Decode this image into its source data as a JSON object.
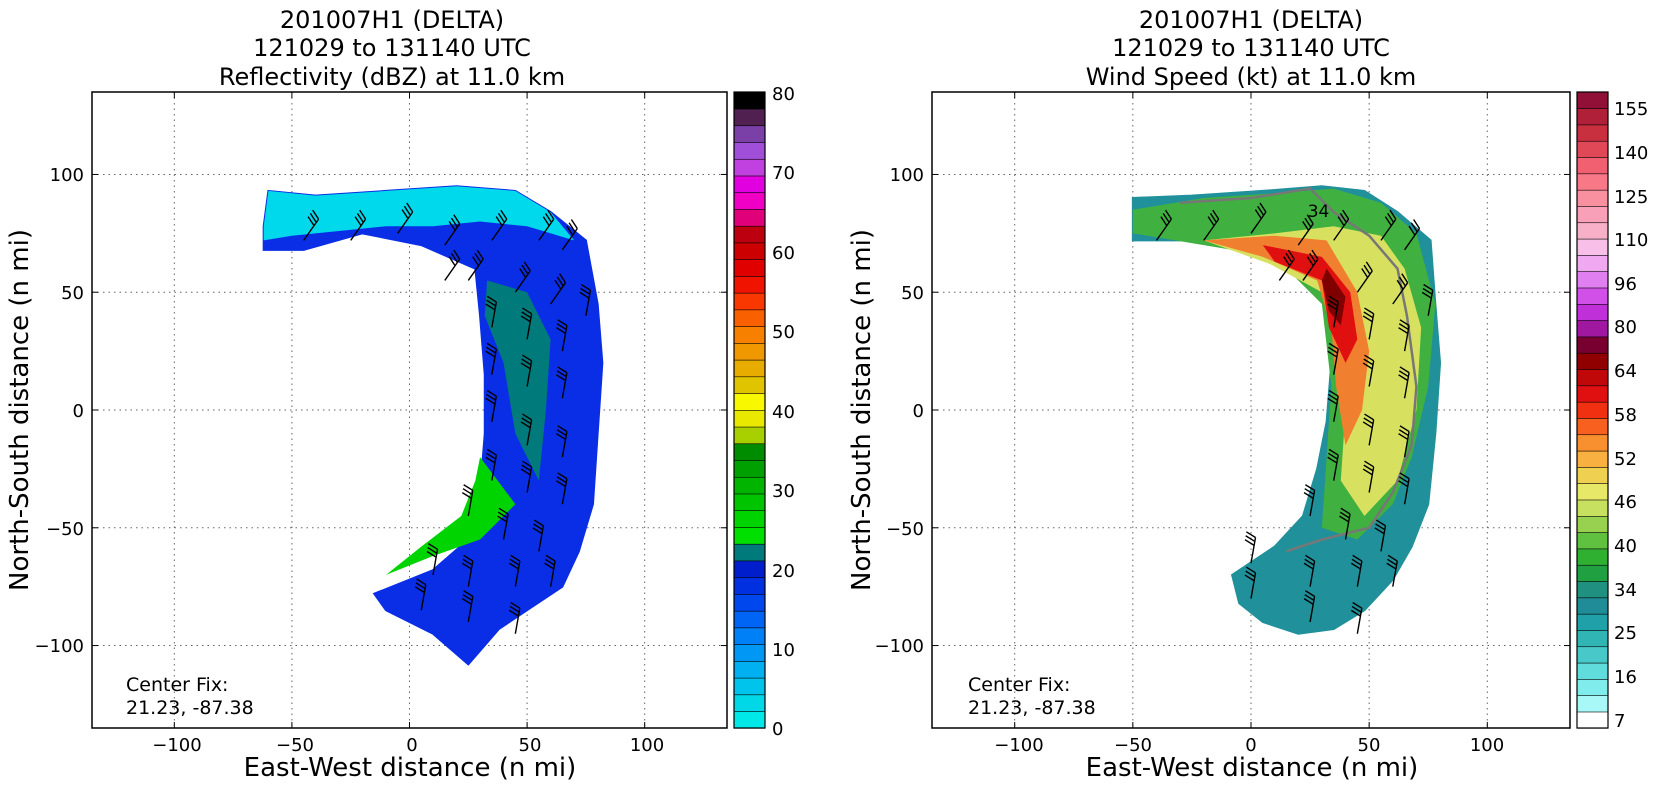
{
  "panels": [
    {
      "title_line1": "201007H1 (DELTA)",
      "title_line2": "121029 to 131140 UTC",
      "title_line3": "Reflectivity (dBZ) at 11.0 km",
      "xlabel": "East-West distance (n mi)",
      "ylabel": "North-South distance (n mi)",
      "center_fix_label": "Center Fix:",
      "center_fix_value": "21.23, -87.38",
      "x_ticks": [
        "−100",
        "−50",
        "0",
        "50",
        "100"
      ],
      "y_ticks": [
        "100",
        "50",
        "0",
        "−50",
        "−100"
      ],
      "colorbar": {
        "ticks": [
          "80",
          "70",
          "60",
          "50",
          "40",
          "30",
          "20",
          "10",
          "0"
        ],
        "colors": [
          "#00e8e8",
          "#00d8e8",
          "#00c4ec",
          "#00b0f0",
          "#0098f4",
          "#0080f6",
          "#0064f4",
          "#0048ee",
          "#0030e0",
          "#001ecc",
          "#007a7a",
          "#00e000",
          "#00d400",
          "#00c400",
          "#00b400",
          "#00a000",
          "#008c00",
          "#a8d000",
          "#e8e800",
          "#f8f800",
          "#e0c400",
          "#e8ac00",
          "#f09800",
          "#f88000",
          "#f86000",
          "#f83800",
          "#f01400",
          "#e00000",
          "#cc0000",
          "#bc0010",
          "#e0007a",
          "#f000c4",
          "#e000e0",
          "#c040e0",
          "#a050d8",
          "#7a40a8",
          "#502050",
          "#000000"
        ]
      }
    },
    {
      "title_line1": "201007H1 (DELTA)",
      "title_line2": "121029 to 131140 UTC",
      "title_line3": "Wind Speed (kt) at 11.0 km",
      "xlabel": "East-West distance (n mi)",
      "ylabel": "North-South distance (n mi)",
      "center_fix_label": "Center Fix:",
      "center_fix_value": "21.23, -87.38",
      "contour_label": "34",
      "x_ticks": [
        "−100",
        "−50",
        "0",
        "50",
        "100"
      ],
      "y_ticks": [
        "100",
        "50",
        "0",
        "−50",
        "−100"
      ],
      "colorbar": {
        "ticks": [
          "155",
          "140",
          "125",
          "110",
          "96",
          "80",
          "64",
          "58",
          "52",
          "46",
          "40",
          "34",
          "25",
          "16",
          "7"
        ],
        "colors": [
          "#ffffff",
          "#a8f8f8",
          "#80ecec",
          "#60dcdc",
          "#48c8c8",
          "#30b4b4",
          "#20a0a8",
          "#208c98",
          "#209080",
          "#20a040",
          "#30b030",
          "#60c040",
          "#98d050",
          "#c8e060",
          "#e8e868",
          "#f0d050",
          "#f8b040",
          "#f89030",
          "#f86020",
          "#f03010",
          "#e01010",
          "#c00808",
          "#900000",
          "#780030",
          "#a018a0",
          "#c030d8",
          "#d050e8",
          "#e080f0",
          "#f0a8f0",
          "#f8c0e8",
          "#f8b0c8",
          "#f8a0b8",
          "#f890a0",
          "#f87888",
          "#f06070",
          "#e04858",
          "#c83040",
          "#b02038",
          "#901038"
        ]
      }
    }
  ],
  "chart_data": [
    {
      "type": "heatmap",
      "title": "201007H1 (DELTA) 121029 to 131140 UTC Reflectivity (dBZ) at 11.0 km",
      "xlabel": "East-West distance (n mi)",
      "ylabel": "North-South distance (n mi)",
      "xlim": [
        -135,
        135
      ],
      "ylim": [
        -135,
        135
      ],
      "xticks": [
        -100,
        -50,
        0,
        50,
        100
      ],
      "yticks": [
        -100,
        -50,
        0,
        50,
        100
      ],
      "grid": true,
      "colorbar_range": [
        0,
        80
      ],
      "colorbar_ticks": [
        0,
        10,
        20,
        30,
        40,
        50,
        60,
        70,
        80
      ],
      "colorbar_unit": "dBZ",
      "center_fix": [
        21.23,
        -87.38
      ],
      "swath_outline": [
        [
          -60,
          93
        ],
        [
          -40,
          91
        ],
        [
          -10,
          93
        ],
        [
          20,
          95
        ],
        [
          45,
          93
        ],
        [
          60,
          84
        ],
        [
          75,
          72
        ],
        [
          80,
          45
        ],
        [
          82,
          20
        ],
        [
          80,
          -10
        ],
        [
          78,
          -40
        ],
        [
          72,
          -60
        ],
        [
          65,
          -75
        ],
        [
          50,
          -85
        ],
        [
          38,
          -93
        ],
        [
          25,
          -108
        ],
        [
          10,
          -95
        ],
        [
          -10,
          -85
        ],
        [
          -15,
          -78
        ],
        [
          10,
          -68
        ],
        [
          25,
          -55
        ],
        [
          30,
          -35
        ],
        [
          32,
          -10
        ],
        [
          32,
          15
        ],
        [
          30,
          40
        ],
        [
          28,
          60
        ],
        [
          5,
          70
        ],
        [
          -20,
          75
        ],
        [
          -45,
          68
        ],
        [
          -62,
          68
        ],
        [
          -62,
          78
        ]
      ],
      "wind_barb_grid": [
        [
          -45,
          72
        ],
        [
          -25,
          72
        ],
        [
          -5,
          75
        ],
        [
          15,
          70
        ],
        [
          35,
          72
        ],
        [
          55,
          72
        ],
        [
          65,
          68
        ],
        [
          15,
          55
        ],
        [
          25,
          55
        ],
        [
          45,
          50
        ],
        [
          60,
          45
        ],
        [
          75,
          40
        ],
        [
          35,
          35
        ],
        [
          50,
          30
        ],
        [
          65,
          25
        ],
        [
          35,
          15
        ],
        [
          50,
          10
        ],
        [
          65,
          5
        ],
        [
          35,
          -5
        ],
        [
          50,
          -15
        ],
        [
          65,
          -20
        ],
        [
          35,
          -30
        ],
        [
          50,
          -35
        ],
        [
          65,
          -40
        ],
        [
          25,
          -45
        ],
        [
          40,
          -55
        ],
        [
          55,
          -60
        ],
        [
          10,
          -70
        ],
        [
          25,
          -75
        ],
        [
          45,
          -75
        ],
        [
          60,
          -75
        ],
        [
          5,
          -85
        ],
        [
          25,
          -90
        ],
        [
          45,
          -95
        ]
      ]
    },
    {
      "type": "heatmap",
      "title": "201007H1 (DELTA) 121029 to 131140 UTC Wind Speed (kt) at 11.0 km",
      "xlabel": "East-West distance (n mi)",
      "ylabel": "North-South distance (n mi)",
      "xlim": [
        -135,
        135
      ],
      "ylim": [
        -135,
        135
      ],
      "xticks": [
        -100,
        -50,
        0,
        50,
        100
      ],
      "yticks": [
        -100,
        -50,
        0,
        50,
        100
      ],
      "grid": true,
      "colorbar_ticks": [
        7,
        16,
        25,
        34,
        40,
        46,
        52,
        58,
        64,
        80,
        96,
        110,
        125,
        140,
        155
      ],
      "colorbar_unit": "kt",
      "contour_labels": [
        34
      ],
      "max_wind_region_kt": 64,
      "center_fix": [
        21.23,
        -87.38
      ],
      "swath_outline": [
        [
          -50,
          90
        ],
        [
          -25,
          91
        ],
        [
          5,
          93
        ],
        [
          30,
          95
        ],
        [
          48,
          93
        ],
        [
          62,
          84
        ],
        [
          76,
          72
        ],
        [
          78,
          45
        ],
        [
          80,
          20
        ],
        [
          78,
          -10
        ],
        [
          75,
          -40
        ],
        [
          68,
          -58
        ],
        [
          60,
          -72
        ],
        [
          48,
          -85
        ],
        [
          35,
          -93
        ],
        [
          20,
          -95
        ],
        [
          5,
          -90
        ],
        [
          -5,
          -82
        ],
        [
          -8,
          -70
        ],
        [
          10,
          -58
        ],
        [
          22,
          -45
        ],
        [
          28,
          -25
        ],
        [
          32,
          -5
        ],
        [
          34,
          20
        ],
        [
          32,
          40
        ],
        [
          30,
          55
        ],
        [
          8,
          68
        ],
        [
          -20,
          72
        ],
        [
          -50,
          72
        ],
        [
          -50,
          82
        ]
      ],
      "wind_barb_grid": [
        [
          -40,
          72
        ],
        [
          -20,
          72
        ],
        [
          0,
          75
        ],
        [
          20,
          70
        ],
        [
          35,
          72
        ],
        [
          55,
          72
        ],
        [
          65,
          68
        ],
        [
          12,
          55
        ],
        [
          22,
          55
        ],
        [
          45,
          50
        ],
        [
          60,
          45
        ],
        [
          75,
          40
        ],
        [
          35,
          35
        ],
        [
          50,
          30
        ],
        [
          65,
          25
        ],
        [
          35,
          15
        ],
        [
          50,
          10
        ],
        [
          65,
          5
        ],
        [
          35,
          -5
        ],
        [
          50,
          -15
        ],
        [
          65,
          -20
        ],
        [
          35,
          -30
        ],
        [
          50,
          -35
        ],
        [
          65,
          -40
        ],
        [
          25,
          -45
        ],
        [
          40,
          -55
        ],
        [
          55,
          -60
        ],
        [
          0,
          -65
        ],
        [
          25,
          -75
        ],
        [
          45,
          -75
        ],
        [
          60,
          -75
        ],
        [
          0,
          -80
        ],
        [
          25,
          -90
        ],
        [
          45,
          -95
        ]
      ]
    }
  ]
}
